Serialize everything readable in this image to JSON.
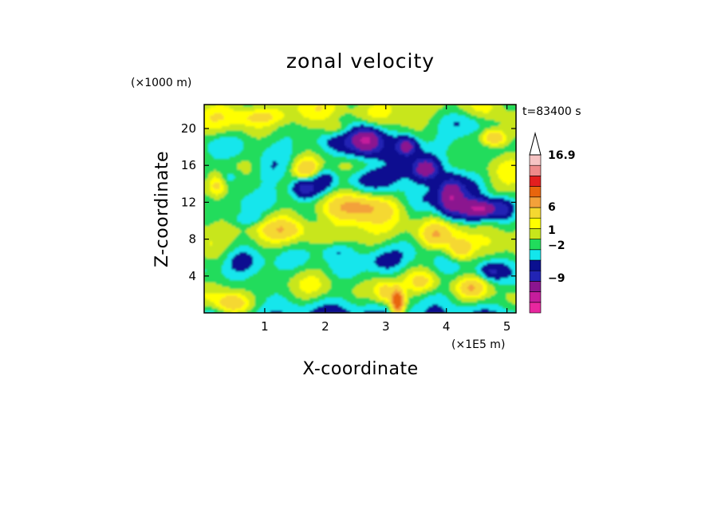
{
  "chart_data": {
    "type": "heatmap",
    "title": "zonal velocity",
    "xlabel": "X-coordinate",
    "ylabel": "Z-coordinate",
    "x_unit": "(×1E5 m)",
    "y_unit": "(×1000 m)",
    "time_label": "t=83400 s",
    "xlim": [
      0,
      5.15
    ],
    "ylim": [
      0,
      22.6
    ],
    "x_ticks": [
      "1",
      "2",
      "3",
      "4",
      "5"
    ],
    "y_ticks": [
      "4",
      "8",
      "12",
      "16",
      "20"
    ],
    "colorbar": {
      "labels": [
        "16.9",
        "6",
        "1",
        "−2",
        "−9"
      ],
      "levels": [
        -16,
        -12,
        -9,
        -6,
        -4,
        -2,
        -1,
        0,
        1,
        2,
        4,
        6,
        9,
        12,
        16.9
      ],
      "colors": [
        "#e8279f",
        "#c51d9c",
        "#8b158f",
        "#2224b4",
        "#0a1090",
        "#13e6ec",
        "#21dc5c",
        "#c8e61b",
        "#ffff00",
        "#f5d830",
        "#f3a13a",
        "#e8650d",
        "#e31f1f",
        "#ee8a8a",
        "#f6c3c3"
      ]
    }
  }
}
